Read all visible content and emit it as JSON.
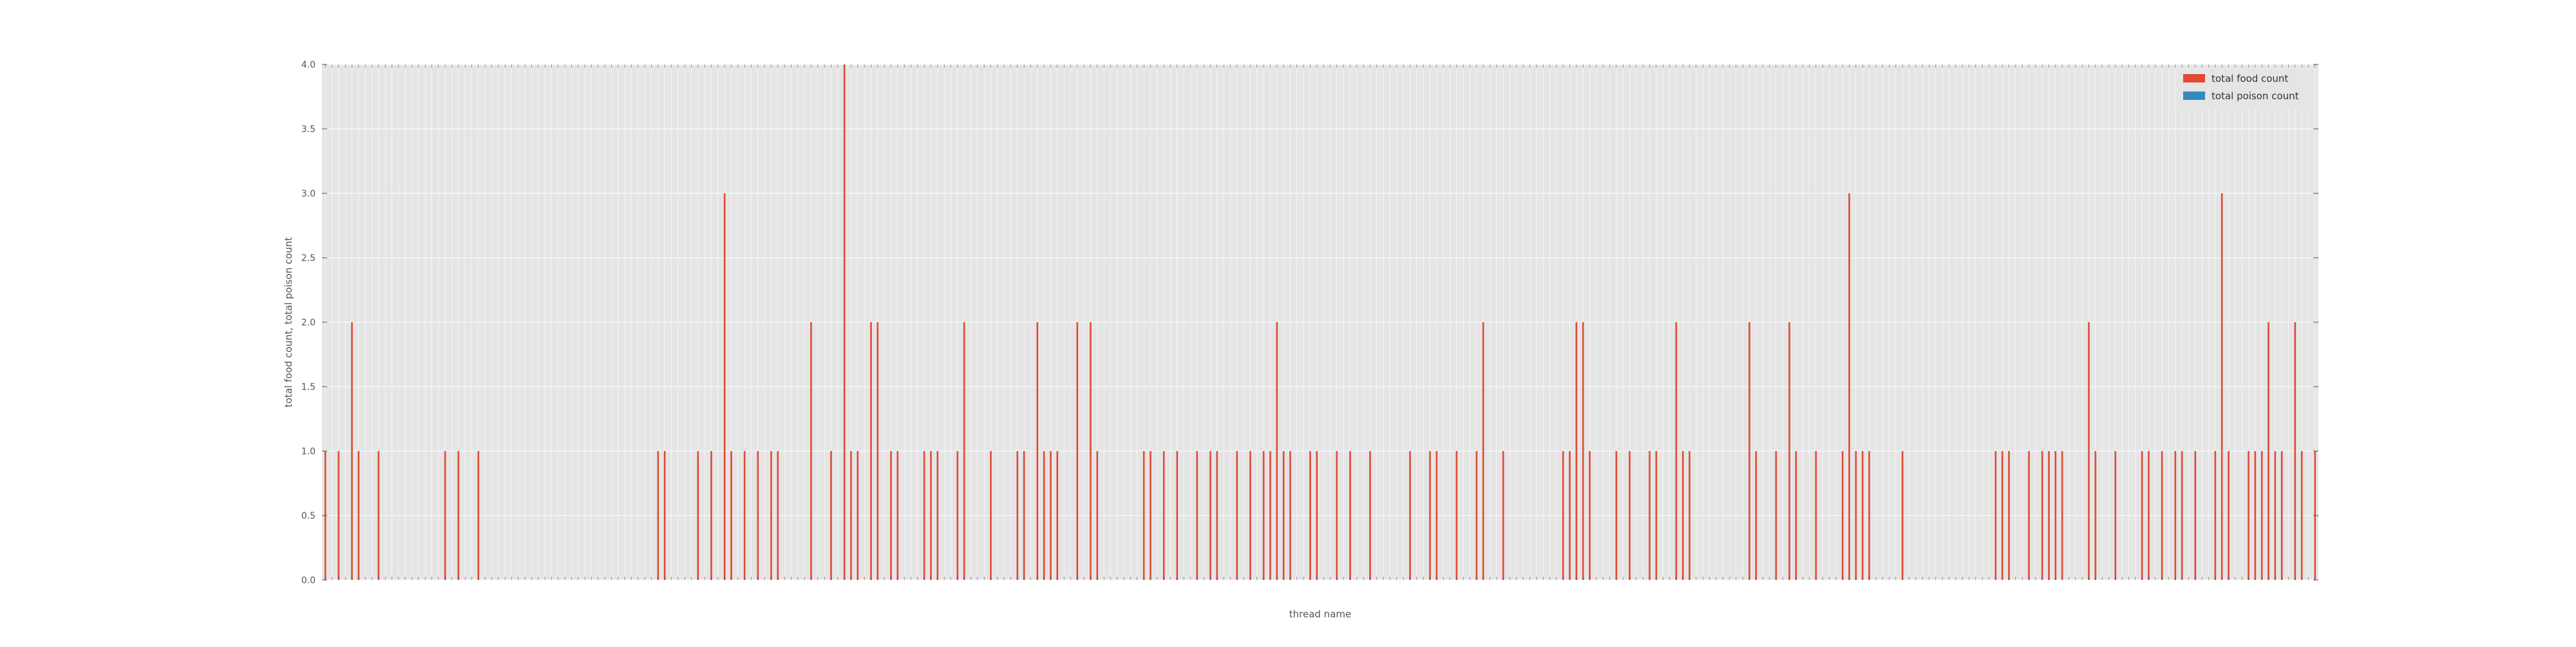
{
  "chart_data": {
    "type": "bar",
    "title": "",
    "xlabel": "thread name",
    "ylabel": "total food count, total poison count",
    "ylim": [
      0,
      4.0
    ],
    "yticks": [
      "0.0",
      "0.5",
      "1.0",
      "1.5",
      "2.0",
      "2.5",
      "3.0",
      "3.5",
      "4.0"
    ],
    "grid": true,
    "legend_position": "top-right",
    "colors": {
      "total food count": "#e24a33",
      "total poison count": "#348abd",
      "plot_background": "#e5e5e5",
      "grid": "#ffffff"
    },
    "n_categories": 300,
    "category_tick_labels": "small rotated integer thread names (illegible at this resolution)",
    "series": [
      {
        "name": "total food count",
        "values": [
          1,
          0,
          1,
          0,
          2,
          1,
          0,
          0,
          1,
          0,
          0,
          0,
          0,
          0,
          0,
          0,
          0,
          0,
          1,
          0,
          1,
          0,
          0,
          1,
          0,
          0,
          0,
          0,
          0,
          0,
          0,
          0,
          0,
          0,
          0,
          0,
          0,
          0,
          0,
          0,
          0,
          0,
          0,
          0,
          0,
          0,
          0,
          0,
          0,
          0,
          1,
          1,
          0,
          0,
          0,
          0,
          1,
          0,
          1,
          0,
          3,
          1,
          0,
          1,
          0,
          1,
          0,
          1,
          1,
          0,
          0,
          0,
          0,
          2,
          0,
          0,
          1,
          0,
          4,
          1,
          1,
          0,
          2,
          2,
          0,
          1,
          1,
          0,
          0,
          0,
          1,
          1,
          1,
          0,
          0,
          1,
          2,
          0,
          0,
          0,
          1,
          0,
          0,
          0,
          1,
          1,
          0,
          2,
          1,
          1,
          1,
          0,
          0,
          2,
          0,
          2,
          1,
          0,
          0,
          0,
          0,
          0,
          0,
          1,
          1,
          0,
          1,
          0,
          1,
          0,
          0,
          1,
          0,
          1,
          1,
          0,
          0,
          1,
          0,
          1,
          0,
          1,
          1,
          2,
          1,
          1,
          0,
          0,
          1,
          1,
          0,
          0,
          1,
          0,
          1,
          0,
          0,
          1,
          0,
          0,
          0,
          0,
          0,
          1,
          0,
          0,
          1,
          1,
          0,
          0,
          1,
          0,
          0,
          1,
          2,
          0,
          0,
          1,
          0,
          0,
          0,
          0,
          0,
          0,
          0,
          0,
          1,
          1,
          2,
          2,
          1,
          0,
          0,
          0,
          1,
          0,
          1,
          0,
          0,
          1,
          1,
          0,
          0,
          2,
          1,
          1,
          0,
          0,
          0,
          0,
          0,
          0,
          0,
          0,
          2,
          1,
          0,
          0,
          1,
          0,
          2,
          1,
          0,
          0,
          1,
          0,
          0,
          0,
          1,
          3,
          1,
          1,
          1,
          0,
          0,
          0,
          0,
          1,
          0,
          0,
          0,
          0,
          0,
          0,
          0,
          0,
          0,
          0,
          0,
          0,
          0,
          1,
          1,
          1,
          0,
          0,
          1,
          0,
          1,
          1,
          1,
          1,
          0,
          0,
          0,
          2,
          1,
          0,
          0,
          1,
          0,
          0,
          0,
          1,
          1,
          0,
          1,
          0,
          1,
          1,
          0,
          1,
          0,
          0,
          1,
          3,
          1,
          0,
          0,
          1,
          1,
          1,
          2,
          1,
          1,
          0,
          2,
          1,
          0,
          1
        ]
      },
      {
        "name": "total poison count",
        "values": []
      }
    ]
  }
}
